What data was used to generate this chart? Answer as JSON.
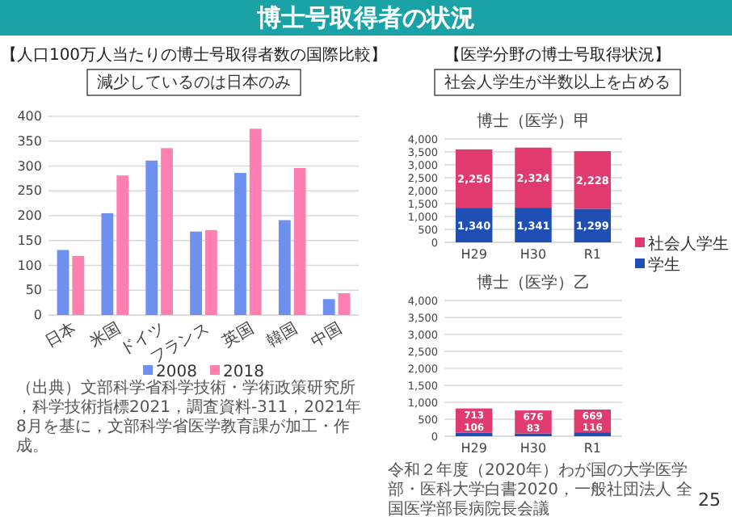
{
  "chart_data": [
    {
      "type": "bar",
      "title": "【人口100万人当たりの博士号取得者数の国際比較】",
      "subtitle": "減少しているのは日本のみ",
      "categories": [
        "日本",
        "米国",
        "ドイツ",
        "フランス",
        "英国",
        "韓国",
        "中国"
      ],
      "series": [
        {
          "name": "2008",
          "color": "#6e90ee",
          "values": [
            131,
            205,
            311,
            168,
            286,
            191,
            32
          ]
        },
        {
          "name": "2018",
          "color": "#ff80b0",
          "values": [
            119,
            281,
            336,
            171,
            375,
            296,
            44
          ]
        }
      ],
      "ylim": [
        0,
        400
      ],
      "yticks": [
        0,
        50,
        100,
        150,
        200,
        250,
        300,
        350,
        400
      ],
      "grid": "y",
      "legend": "bottom",
      "annotations": [
        "博士号取得者の状況",
        "（出典）文部科学省科学技術・学術政策研究所，科学技術指標2021，調査資料-311，2021年8月を基に，文部科学省医学教育課が加工・作成。"
      ]
    },
    {
      "type": "bar",
      "stacked": true,
      "title": "博士（医学）甲",
      "categories": [
        "H29",
        "H30",
        "R1"
      ],
      "series": [
        {
          "name": "学生",
          "color": "#1f4fb5",
          "values": [
            1340,
            1341,
            1299
          ],
          "value_labels": [
            "1,340",
            "1,341",
            "1,299"
          ]
        },
        {
          "name": "社会人学生",
          "color": "#e03a6e",
          "values": [
            2256,
            2324,
            2228
          ],
          "value_labels": [
            "2,256",
            "2,324",
            "2,228"
          ]
        }
      ],
      "ylim": [
        0,
        4000
      ],
      "yticks": [
        {
          "value": 0,
          "label": "0"
        },
        {
          "value": 500,
          "label": "500"
        },
        {
          "value": 1000,
          "label": "1,000"
        },
        {
          "value": 1500,
          "label": "1,500"
        },
        {
          "value": 2000,
          "label": "2,000"
        },
        {
          "value": 2500,
          "label": "2,500"
        },
        {
          "value": 3000,
          "label": "3,000"
        },
        {
          "value": 3500,
          "label": "3,500"
        },
        {
          "value": 4000,
          "label": "4,000"
        }
      ],
      "grid": "y",
      "legend": "right",
      "annotations": [
        "【医学分野の博士号取得状況】",
        "社会人学生が半数以上を占める"
      ]
    },
    {
      "type": "bar",
      "stacked": true,
      "title": "博士（医学）乙",
      "categories": [
        "H29",
        "H30",
        "R1"
      ],
      "series": [
        {
          "color": "#1f4fb5",
          "values": [
            106,
            83,
            116
          ],
          "value_labels": [
            "106",
            "83",
            "116"
          ]
        },
        {
          "color": "#e03a6e",
          "values": [
            713,
            676,
            669
          ],
          "value_labels": [
            "713",
            "676",
            "669"
          ]
        }
      ],
      "ylim": [
        0,
        4000
      ],
      "yticks": [
        {
          "value": 0,
          "label": "0"
        },
        {
          "value": 500,
          "label": "500"
        },
        {
          "value": 1000,
          "label": "1,000"
        },
        {
          "value": 1500,
          "label": "1,500"
        },
        {
          "value": 2000,
          "label": "2,000"
        },
        {
          "value": 2500,
          "label": "2,500"
        },
        {
          "value": 3000,
          "label": "3,000"
        },
        {
          "value": 3500,
          "label": "3,500"
        },
        {
          "value": 4000,
          "label": "4,000"
        }
      ],
      "grid": "y",
      "annotations": [
        "令和２年度（2020年）わが国の大学医学部・医科大学白書2020，一般社団法人 全国医学部長病院長会議",
        "25"
      ]
    }
  ]
}
